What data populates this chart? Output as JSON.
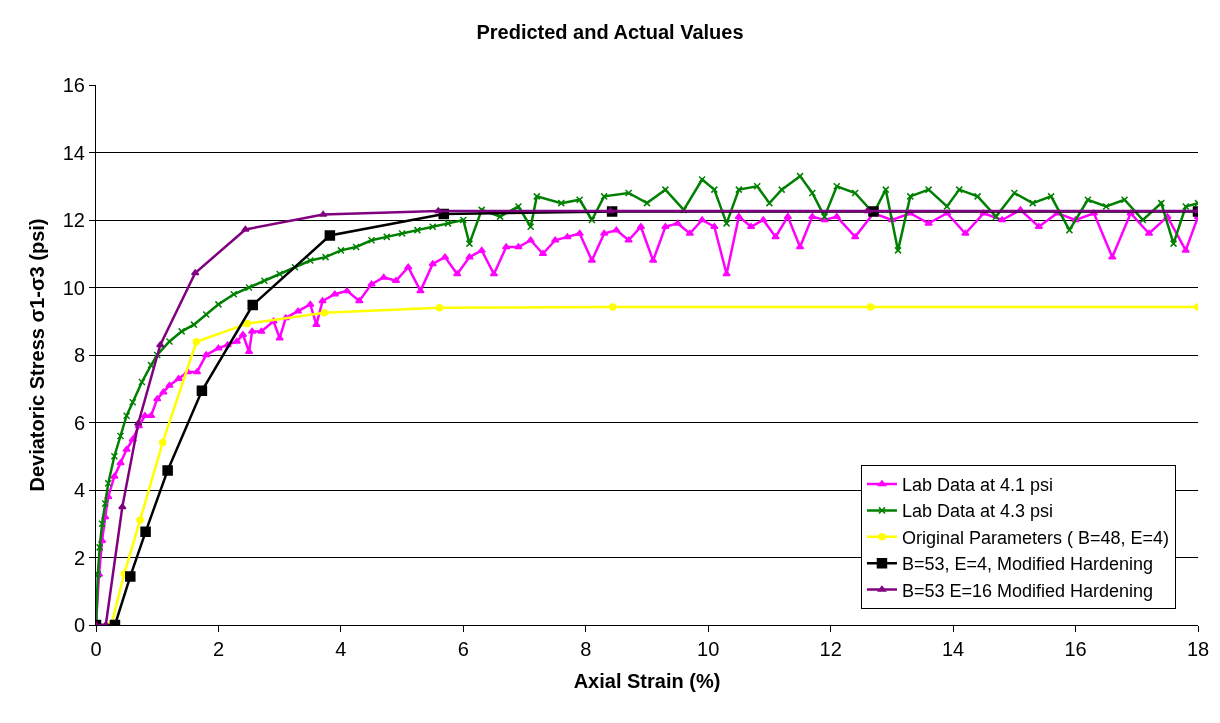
{
  "chart_data": {
    "type": "line",
    "title": "Predicted and Actual Values",
    "xlabel": "Axial Strain (%)",
    "ylabel": "Deviatoric Stress σ1-σ3 (psi)",
    "xlim": [
      0,
      18
    ],
    "xticks": [
      0,
      2,
      4,
      6,
      8,
      10,
      12,
      14,
      16,
      18
    ],
    "ylim": [
      0,
      16
    ],
    "yticks": [
      0,
      2,
      4,
      6,
      8,
      10,
      12,
      14,
      16
    ],
    "grid": "y",
    "legend": "bottom right",
    "series": [
      {
        "name": "Lab Data at 4.1 psi",
        "color": "#ff00ff",
        "marker": "triangle",
        "x": [
          0,
          0.05,
          0.1,
          0.15,
          0.2,
          0.3,
          0.4,
          0.5,
          0.6,
          0.7,
          0.8,
          0.9,
          1.0,
          1.1,
          1.2,
          1.35,
          1.5,
          1.65,
          1.8,
          2.0,
          2.15,
          2.3,
          2.4,
          2.5,
          2.55,
          2.7,
          2.9,
          3.0,
          3.1,
          3.3,
          3.5,
          3.6,
          3.7,
          3.9,
          4.1,
          4.3,
          4.5,
          4.7,
          4.9,
          5.1,
          5.3,
          5.5,
          5.7,
          5.9,
          6.1,
          6.3,
          6.5,
          6.7,
          6.9,
          7.1,
          7.3,
          7.5,
          7.7,
          7.9,
          8.1,
          8.3,
          8.5,
          8.7,
          8.9,
          9.1,
          9.3,
          9.5,
          9.7,
          9.9,
          10.1,
          10.3,
          10.5,
          10.7,
          10.9,
          11.1,
          11.3,
          11.5,
          11.7,
          11.9,
          12.1,
          12.4,
          12.7,
          13.0,
          13.3,
          13.6,
          13.9,
          14.2,
          14.5,
          14.8,
          15.1,
          15.4,
          15.7,
          16.0,
          16.3,
          16.6,
          16.9,
          17.2,
          17.5,
          17.8,
          18
        ],
        "values": [
          0,
          1.5,
          2.5,
          3.2,
          3.8,
          4.4,
          4.8,
          5.2,
          5.5,
          5.9,
          6.2,
          6.2,
          6.7,
          6.9,
          7.1,
          7.3,
          7.5,
          7.5,
          8.0,
          8.2,
          8.3,
          8.4,
          8.6,
          8.1,
          8.7,
          8.7,
          9.0,
          8.5,
          9.1,
          9.3,
          9.5,
          8.9,
          9.6,
          9.8,
          9.9,
          9.6,
          10.1,
          10.3,
          10.2,
          10.6,
          9.9,
          10.7,
          10.9,
          10.4,
          10.9,
          11.1,
          10.4,
          11.2,
          11.2,
          11.4,
          11.0,
          11.4,
          11.5,
          11.6,
          10.8,
          11.6,
          11.7,
          11.4,
          11.8,
          10.8,
          11.8,
          11.9,
          11.6,
          12.0,
          11.8,
          10.4,
          12.1,
          11.8,
          12.0,
          11.5,
          12.1,
          11.2,
          12.1,
          12.0,
          12.1,
          11.5,
          12.2,
          12.0,
          12.2,
          11.9,
          12.2,
          11.6,
          12.2,
          12.0,
          12.3,
          11.8,
          12.2,
          12.0,
          12.2,
          10.9,
          12.2,
          11.6,
          12.1,
          11.1,
          12.1
        ]
      },
      {
        "name": "Lab Data at 4.3 psi",
        "color": "#008000",
        "marker": "cross",
        "x": [
          0,
          0.03,
          0.06,
          0.1,
          0.15,
          0.2,
          0.3,
          0.4,
          0.5,
          0.6,
          0.75,
          0.9,
          1.0,
          1.2,
          1.4,
          1.6,
          1.8,
          2.0,
          2.25,
          2.5,
          2.75,
          3,
          3.25,
          3.5,
          3.75,
          4,
          4.25,
          4.5,
          4.75,
          5,
          5.25,
          5.5,
          5.75,
          6.0,
          6.1,
          6.3,
          6.6,
          6.9,
          7.1,
          7.2,
          7.6,
          7.9,
          8.1,
          8.3,
          8.7,
          9.0,
          9.3,
          9.6,
          9.9,
          10.1,
          10.3,
          10.5,
          10.8,
          11.0,
          11.2,
          11.5,
          11.7,
          11.9,
          12.1,
          12.4,
          12.7,
          12.9,
          13.1,
          13.3,
          13.6,
          13.9,
          14.1,
          14.4,
          14.7,
          15.0,
          15.3,
          15.6,
          15.9,
          16.2,
          16.5,
          16.8,
          17.1,
          17.4,
          17.6,
          17.8,
          18
        ],
        "values": [
          0,
          1.5,
          2.3,
          3.0,
          3.6,
          4.2,
          5.0,
          5.6,
          6.2,
          6.6,
          7.2,
          7.7,
          8.0,
          8.4,
          8.7,
          8.9,
          9.2,
          9.5,
          9.8,
          10.0,
          10.2,
          10.4,
          10.6,
          10.8,
          10.9,
          11.1,
          11.2,
          11.4,
          11.5,
          11.6,
          11.7,
          11.8,
          11.9,
          12.0,
          11.3,
          12.3,
          12.1,
          12.4,
          11.8,
          12.7,
          12.5,
          12.6,
          12.0,
          12.7,
          12.8,
          12.5,
          12.9,
          12.3,
          13.2,
          12.9,
          11.9,
          12.9,
          13.0,
          12.5,
          12.9,
          13.3,
          12.8,
          12.1,
          13.0,
          12.8,
          12.2,
          12.9,
          11.1,
          12.7,
          12.9,
          12.4,
          12.9,
          12.7,
          12.1,
          12.8,
          12.5,
          12.7,
          11.7,
          12.6,
          12.4,
          12.6,
          12.0,
          12.5,
          11.3,
          12.4,
          12.5
        ]
      },
      {
        "name": "Original Parameters ( B=48, E=4)",
        "color": "#ffff00",
        "marker": "circle",
        "x": [
          0,
          0.25,
          0.46,
          0.72,
          1.09,
          1.64,
          2.47,
          3.73,
          5.61,
          8.44,
          12.65,
          18
        ],
        "values": [
          0,
          0,
          1.51,
          3.11,
          5.41,
          8.39,
          8.93,
          9.25,
          9.4,
          9.42,
          9.42,
          9.42
        ]
      },
      {
        "name": "B=53, E=4, Modified Hardening",
        "color": "#000000",
        "marker": "square",
        "x": [
          0,
          0.31,
          0.56,
          0.81,
          1.17,
          1.73,
          2.56,
          3.82,
          5.68,
          8.43,
          12.7,
          18
        ],
        "values": [
          0,
          0,
          1.44,
          2.76,
          4.58,
          6.94,
          9.48,
          11.54,
          12.18,
          12.25,
          12.25,
          12.25
        ]
      },
      {
        "name": "B=53 E=16 Modified Hardening",
        "color": "#800080",
        "marker": "triangle",
        "x": [
          0,
          0.16,
          0.43,
          0.69,
          1.05,
          1.62,
          2.44,
          3.71,
          5.59,
          8.4,
          12.6,
          18
        ],
        "values": [
          0,
          0,
          3.5,
          5.97,
          8.3,
          10.43,
          11.72,
          12.16,
          12.27,
          12.27,
          12.27,
          12.27
        ]
      }
    ]
  }
}
